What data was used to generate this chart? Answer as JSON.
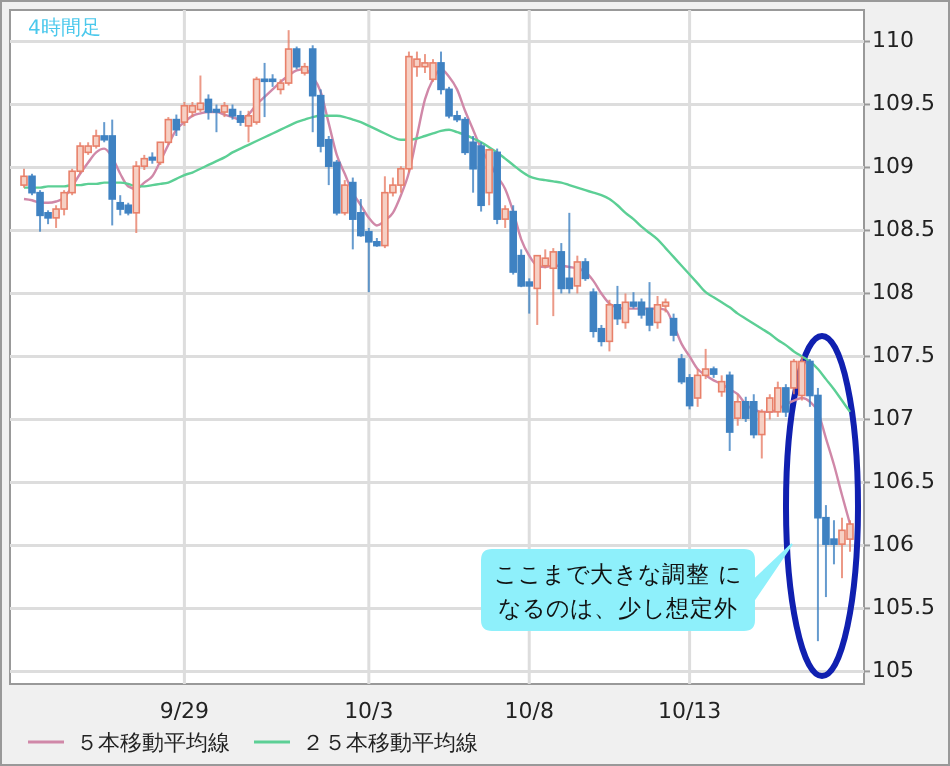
{
  "chart_data": {
    "type": "candlestick",
    "title": "4時間足",
    "categories": [
      null,
      null,
      null,
      null,
      null,
      null,
      null,
      null,
      null,
      null,
      null,
      null,
      null,
      null,
      null,
      null,
      null,
      null,
      null,
      null,
      "9/29",
      null,
      null,
      null,
      null,
      null,
      null,
      null,
      null,
      null,
      null,
      null,
      null,
      null,
      null,
      null,
      null,
      null,
      null,
      null,
      null,
      null,
      null,
      "10/3",
      null,
      null,
      null,
      null,
      null,
      null,
      null,
      null,
      null,
      null,
      null,
      null,
      null,
      null,
      null,
      null,
      null,
      null,
      null,
      "10/8",
      null,
      null,
      null,
      null,
      null,
      null,
      null,
      null,
      null,
      null,
      null,
      null,
      null,
      null,
      null,
      null,
      null,
      null,
      null,
      "10/13",
      null,
      null,
      null,
      null,
      null,
      null,
      null,
      null,
      null,
      null,
      null,
      null,
      null,
      null,
      null,
      null,
      null,
      null,
      null,
      null
    ],
    "ohlc": [
      [
        108.86,
        108.99,
        108.84,
        108.93
      ],
      [
        108.93,
        108.95,
        108.78,
        108.8
      ],
      [
        108.8,
        108.82,
        108.49,
        108.62
      ],
      [
        108.64,
        108.66,
        108.55,
        108.6
      ],
      [
        108.6,
        108.7,
        108.52,
        108.67
      ],
      [
        108.67,
        108.82,
        108.62,
        108.8
      ],
      [
        108.8,
        108.99,
        108.78,
        108.97
      ],
      [
        108.97,
        109.2,
        108.95,
        109.17
      ],
      [
        109.12,
        109.2,
        109.1,
        109.17
      ],
      [
        109.17,
        109.3,
        109.15,
        109.25
      ],
      [
        109.25,
        109.36,
        109.2,
        109.22
      ],
      [
        109.25,
        109.38,
        108.54,
        108.75
      ],
      [
        108.72,
        108.78,
        108.62,
        108.67
      ],
      [
        108.7,
        108.72,
        108.62,
        108.64
      ],
      [
        108.64,
        109.05,
        108.48,
        109.01
      ],
      [
        109.01,
        109.1,
        108.98,
        109.07
      ],
      [
        109.08,
        109.12,
        109.03,
        109.06
      ],
      [
        109.04,
        109.2,
        109.02,
        109.2
      ],
      [
        109.2,
        109.4,
        109.18,
        109.38
      ],
      [
        109.38,
        109.42,
        109.25,
        109.3
      ],
      [
        109.36,
        109.52,
        109.33,
        109.49
      ],
      [
        109.44,
        109.52,
        109.4,
        109.49
      ],
      [
        109.46,
        109.73,
        109.44,
        109.51
      ],
      [
        109.54,
        109.58,
        109.38,
        109.44
      ],
      [
        109.46,
        109.5,
        109.28,
        109.44
      ],
      [
        109.44,
        109.52,
        109.4,
        109.49
      ],
      [
        109.46,
        109.5,
        109.38,
        109.41
      ],
      [
        109.41,
        109.45,
        109.33,
        109.36
      ],
      [
        109.33,
        109.45,
        109.2,
        109.41
      ],
      [
        109.36,
        109.72,
        109.34,
        109.7
      ],
      [
        109.7,
        109.83,
        109.4,
        109.69
      ],
      [
        109.7,
        109.74,
        109.64,
        109.69
      ],
      [
        109.62,
        109.7,
        109.58,
        109.67
      ],
      [
        109.67,
        110.09,
        109.65,
        109.94
      ],
      [
        109.94,
        109.96,
        109.78,
        109.8
      ],
      [
        109.75,
        109.83,
        109.73,
        109.8
      ],
      [
        109.94,
        109.97,
        109.28,
        109.57
      ],
      [
        109.57,
        109.62,
        109.12,
        109.17
      ],
      [
        109.22,
        109.25,
        108.86,
        109.01
      ],
      [
        109.04,
        109.06,
        108.62,
        108.64
      ],
      [
        108.64,
        108.9,
        108.62,
        108.86
      ],
      [
        108.88,
        108.92,
        108.35,
        108.59
      ],
      [
        108.64,
        108.75,
        108.45,
        108.46
      ],
      [
        108.49,
        108.52,
        108.01,
        108.41
      ],
      [
        108.41,
        108.44,
        108.37,
        108.38
      ],
      [
        108.38,
        108.93,
        108.36,
        108.8
      ],
      [
        108.8,
        108.92,
        108.77,
        108.86
      ],
      [
        108.86,
        109.01,
        108.8,
        108.99
      ],
      [
        108.99,
        109.92,
        108.96,
        109.88
      ],
      [
        109.8,
        109.92,
        109.72,
        109.86
      ],
      [
        109.8,
        109.9,
        109.75,
        109.83
      ],
      [
        109.7,
        109.86,
        109.68,
        109.83
      ],
      [
        109.83,
        109.92,
        109.58,
        109.62
      ],
      [
        109.62,
        109.64,
        109.39,
        109.41
      ],
      [
        109.41,
        109.45,
        109.36,
        109.38
      ],
      [
        109.38,
        109.4,
        109.1,
        109.12
      ],
      [
        109.2,
        109.25,
        108.8,
        108.99
      ],
      [
        109.17,
        109.2,
        108.65,
        108.7
      ],
      [
        108.8,
        109.15,
        108.7,
        109.14
      ],
      [
        109.12,
        109.15,
        108.55,
        108.59
      ],
      [
        108.59,
        108.7,
        108.52,
        108.67
      ],
      [
        108.65,
        108.7,
        108.15,
        108.17
      ],
      [
        108.3,
        108.35,
        108.05,
        108.06
      ],
      [
        108.09,
        108.12,
        107.84,
        108.06
      ],
      [
        108.04,
        108.3,
        107.75,
        108.3
      ],
      [
        108.22,
        108.35,
        108.2,
        108.28
      ],
      [
        108.2,
        108.36,
        107.82,
        108.33
      ],
      [
        108.33,
        108.4,
        108,
        108.04
      ],
      [
        108.12,
        108.64,
        108,
        108.04
      ],
      [
        108.06,
        108.3,
        108,
        108.25
      ],
      [
        108.25,
        108.28,
        108.1,
        108.12
      ],
      [
        108.01,
        108.04,
        107.65,
        107.7
      ],
      [
        107.72,
        107.75,
        107.58,
        107.62
      ],
      [
        107.62,
        107.95,
        107.54,
        107.91
      ],
      [
        107.91,
        108.06,
        107.75,
        107.8
      ],
      [
        107.77,
        108,
        107.72,
        107.93
      ],
      [
        107.93,
        108.01,
        107.88,
        107.9
      ],
      [
        107.93,
        107.96,
        107.8,
        107.83
      ],
      [
        107.88,
        108.09,
        107.7,
        107.75
      ],
      [
        107.77,
        107.98,
        107.72,
        107.91
      ],
      [
        107.9,
        107.96,
        107.85,
        107.93
      ],
      [
        107.8,
        107.84,
        107.62,
        107.67
      ],
      [
        107.48,
        107.52,
        107.28,
        107.3
      ],
      [
        107.33,
        107.36,
        107.08,
        107.11
      ],
      [
        107.17,
        107.4,
        107.1,
        107.35
      ],
      [
        107.35,
        107.56,
        107.32,
        107.4
      ],
      [
        107.4,
        107.42,
        107.33,
        107.36
      ],
      [
        107.22,
        107.35,
        107.18,
        107.3
      ],
      [
        107.35,
        107.38,
        106.75,
        106.9
      ],
      [
        107.01,
        107.2,
        106.95,
        107.14
      ],
      [
        107.14,
        107.18,
        106.98,
        107.01
      ],
      [
        107.14,
        107.2,
        106.85,
        106.88
      ],
      [
        106.88,
        107.08,
        106.69,
        107.06
      ],
      [
        107.06,
        107.2,
        107,
        107.17
      ],
      [
        107.06,
        107.3,
        107.02,
        107.25
      ],
      [
        107.25,
        107.28,
        107.02,
        107.06
      ],
      [
        107.25,
        107.48,
        107.2,
        107.46
      ],
      [
        107.19,
        107.5,
        107.15,
        107.46
      ],
      [
        107.46,
        107.48,
        107.1,
        107.19
      ],
      [
        107.19,
        107.25,
        105.24,
        106.22
      ],
      [
        106.22,
        106.32,
        105.59,
        106.01
      ],
      [
        106.05,
        106.2,
        105.85,
        106.01
      ],
      [
        106.01,
        106.22,
        105.74,
        106.12
      ],
      [
        106.05,
        106.2,
        105.95,
        106.17
      ]
    ],
    "series": [
      {
        "name": "５本移動平均線",
        "type": "line",
        "color": "#d088a8",
        "values": [
          108.75,
          108.74,
          108.72,
          108.72,
          108.73,
          108.76,
          108.85,
          108.95,
          109.04,
          109.12,
          109.15,
          109.08,
          108.95,
          108.85,
          108.83,
          108.88,
          108.93,
          109.05,
          109.18,
          109.3,
          109.36,
          109.41,
          109.43,
          109.44,
          109.44,
          109.42,
          109.4,
          109.38,
          109.42,
          109.5,
          109.56,
          109.62,
          109.68,
          109.73,
          109.77,
          109.78,
          109.72,
          109.6,
          109.35,
          109.1,
          108.95,
          108.8,
          108.7,
          108.6,
          108.54,
          108.58,
          108.64,
          108.78,
          108.96,
          109.25,
          109.54,
          109.7,
          109.78,
          109.72,
          109.62,
          109.45,
          109.3,
          109.15,
          109.04,
          108.93,
          108.83,
          108.65,
          108.43,
          108.3,
          108.22,
          108.21,
          108.22,
          108.22,
          108.21,
          108.2,
          108.17,
          108.1,
          108,
          107.92,
          107.89,
          107.88,
          107.88,
          107.88,
          107.88,
          107.88,
          107.87,
          107.75,
          107.6,
          107.5,
          107.4,
          107.35,
          107.31,
          107.28,
          107.24,
          107.2,
          107.12,
          107.08,
          107.06,
          107.06,
          107.08,
          107.12,
          107.15,
          107.17,
          107.14,
          107.06,
          106.85,
          106.64,
          106.4,
          106.17
        ]
      },
      {
        "name": "２５本移動平均線",
        "type": "line",
        "color": "#5ccf95",
        "values": [
          108.84,
          108.84,
          108.84,
          108.85,
          108.85,
          108.85,
          108.86,
          108.86,
          108.87,
          108.87,
          108.88,
          108.88,
          108.88,
          108.87,
          108.85,
          108.85,
          108.86,
          108.87,
          108.88,
          108.91,
          108.94,
          108.96,
          108.99,
          109.02,
          109.05,
          109.08,
          109.12,
          109.15,
          109.18,
          109.21,
          109.24,
          109.27,
          109.3,
          109.33,
          109.36,
          109.38,
          109.4,
          109.41,
          109.41,
          109.41,
          109.4,
          109.38,
          109.36,
          109.33,
          109.3,
          109.27,
          109.24,
          109.22,
          109.22,
          109.23,
          109.25,
          109.27,
          109.29,
          109.3,
          109.28,
          109.26,
          109.23,
          109.2,
          109.16,
          109.12,
          109.07,
          109.02,
          108.97,
          108.93,
          108.91,
          108.9,
          108.89,
          108.88,
          108.86,
          108.84,
          108.82,
          108.8,
          108.78,
          108.75,
          108.7,
          108.64,
          108.59,
          108.53,
          108.48,
          108.43,
          108.36,
          108.29,
          108.22,
          108.15,
          108.08,
          108.01,
          107.97,
          107.93,
          107.89,
          107.84,
          107.8,
          107.76,
          107.72,
          107.68,
          107.63,
          107.59,
          107.54,
          107.5,
          107.46,
          107.4,
          107.32,
          107.24,
          107.15,
          107.06
        ]
      }
    ],
    "ylim": [
      104.9,
      110.25
    ],
    "yticks": [
      105,
      105.5,
      106,
      106.5,
      107,
      107.5,
      108,
      108.5,
      109,
      109.5,
      110
    ],
    "grid": true,
    "legend": "bottom",
    "annotations": [
      "ここまで大きな調整 になるのは、少し想定外"
    ]
  }
}
